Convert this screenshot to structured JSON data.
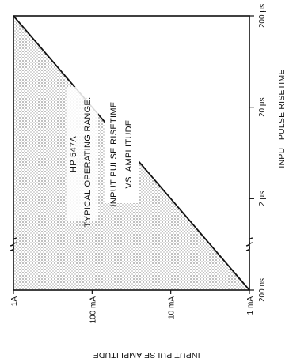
{
  "chart_data": {
    "type": "area",
    "orientation": "rotated 90 degrees counter-clockwise",
    "x_axis": {
      "label": "INPUT PULSE RISETIME",
      "ticks": [
        "200 ns",
        "2 µs",
        "20 µs",
        "200 µs"
      ],
      "tick_values_seconds": [
        2e-07,
        2e-06,
        2e-05,
        0.0002
      ],
      "scale": "log",
      "range_seconds": [
        2e-07,
        0.0002
      ]
    },
    "y_axis": {
      "label": "INPUT PULSE AMPLITUDE",
      "ticks": [
        "1 mA",
        "10 mA",
        "100 mA",
        "1A"
      ],
      "tick_values_amperes": [
        0.001,
        0.01,
        0.1,
        1
      ],
      "scale": "log",
      "range_amperes": [
        0.001,
        1
      ]
    },
    "boundary": {
      "x_seconds": [
        2e-07,
        0.0002
      ],
      "y_amperes": [
        0.001,
        1
      ]
    },
    "annotation_lines": [
      "HP 547A",
      "TYPICAL OPERATING RANGE:",
      "INPUT PULSE RISETIME",
      "VS. AMPLITUDE"
    ],
    "grid": false,
    "fill": "stippled"
  }
}
